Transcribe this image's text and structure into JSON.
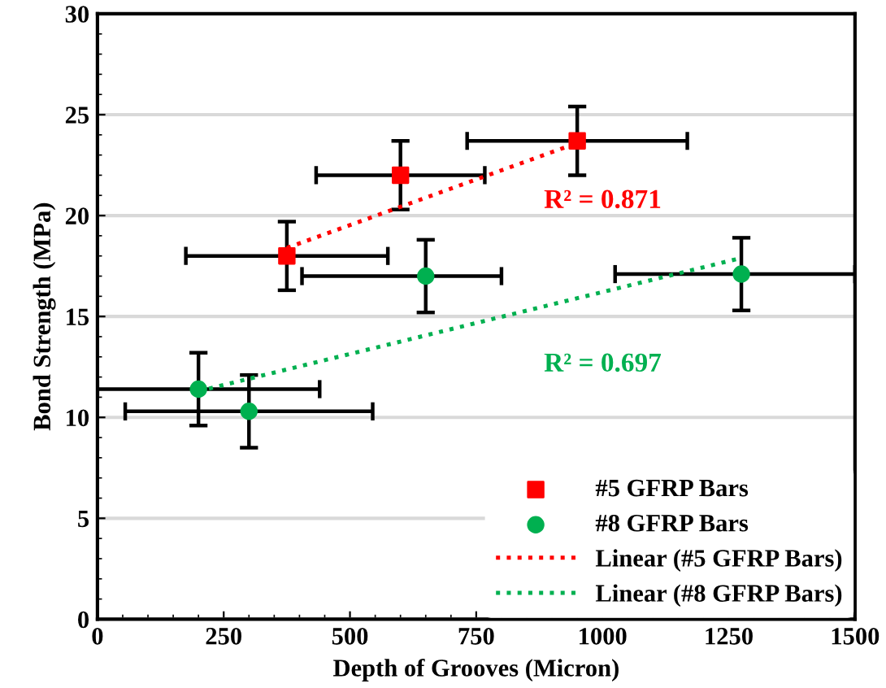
{
  "chart_data": {
    "type": "scatter",
    "xlabel": "Depth of Grooves (Micron)",
    "ylabel": "Bond Strength (MPa)",
    "xlim": [
      0,
      1500
    ],
    "xticks": [
      0,
      250,
      500,
      750,
      1000,
      1250,
      1500
    ],
    "ylim": [
      0,
      30
    ],
    "yticks": [
      0,
      5,
      10,
      15,
      20,
      25,
      30
    ],
    "grid": "y",
    "legend": "bottom right",
    "series": [
      {
        "name": "#5 GFRP Bars",
        "type": "scatter",
        "marker": "square",
        "color": "#ff0000",
        "x": [
          375,
          600,
          950
        ],
        "values": [
          18,
          22,
          23.7
        ],
        "xerrors": [
          200,
          167,
          218
        ],
        "errors": [
          1.7,
          1.7,
          1.7
        ]
      },
      {
        "name": "#8 GFRP Bars",
        "type": "scatter",
        "marker": "circle",
        "color": "#00b050",
        "x": [
          200,
          300,
          650,
          1275
        ],
        "values": [
          11.4,
          10.3,
          17,
          17.1
        ],
        "xerrors": [
          [
            0,
            440
          ],
          245,
          [
            405,
            800
          ],
          [
            1025,
            1500
          ]
        ],
        "errors": [
          1.8,
          1.8,
          1.8,
          1.8
        ]
      },
      {
        "name": "Linear (#5 GFRP Bars)",
        "type": "line",
        "line_style": "dotted",
        "color": "#ff0000",
        "x": [
          375,
          950
        ],
        "values": [
          18.4,
          23.6
        ]
      },
      {
        "name": "Linear (#8 GFRP Bars)",
        "type": "line",
        "line_style": "dotted",
        "color": "#00b050",
        "x": [
          200,
          1275
        ],
        "values": [
          11.3,
          17.9
        ]
      }
    ],
    "annotations": [
      "R² = 0.871",
      "R² = 0.697"
    ]
  }
}
